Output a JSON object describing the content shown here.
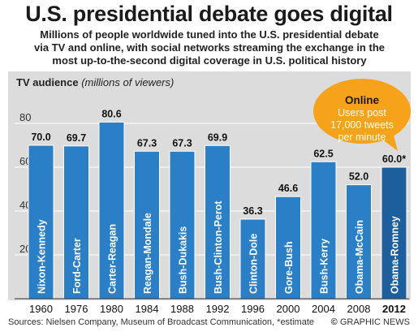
{
  "title": "U.S. presidential debate goes digital",
  "subtitle_lines": [
    "Millions of people worldwide tuned into the U.S. presidential debate",
    "via TV and online, with social networks streaming the exchange in the",
    "most up-to-the-second digital coverage in U.S. political history"
  ],
  "chart_data": {
    "type": "bar",
    "ylabel_bold": "TV audience",
    "ylabel_italic": "(millions of viewers)",
    "ylim": [
      0,
      90
    ],
    "yticks": [
      "20",
      "40",
      "60",
      "80"
    ],
    "grid": true,
    "categories": [
      "1960",
      "1976",
      "1980",
      "1984",
      "1988",
      "1992",
      "1996",
      "2000",
      "2004",
      "2008",
      "2012"
    ],
    "matchups": [
      "Nixon-Kennedy",
      "Ford-Carter",
      "Carter-Reagan",
      "Reagan-Mondale",
      "Bush-Dukakis",
      "Bush-Clinton-Perot",
      "Clinton-Dole",
      "Gore-Bush",
      "Bush-Kerry",
      "Obama-McCain",
      "Obama-Romney"
    ],
    "values": [
      70.0,
      69.7,
      80.6,
      67.3,
      67.3,
      69.9,
      36.3,
      46.6,
      62.5,
      52.0,
      60.0
    ],
    "value_labels": [
      "70.0",
      "69.7",
      "80.6",
      "67.3",
      "67.3",
      "69.9",
      "36.3",
      "46.6",
      "62.5",
      "52.0",
      "60.0*"
    ],
    "bar_color": "#2b7fc6",
    "highlight_color": "#1c5f9c",
    "highlight_index": 10,
    "callout": {
      "heading": "Online",
      "lines": [
        "Users post",
        "17,000 tweets",
        "per minute"
      ],
      "color": "#f7a21b"
    }
  },
  "footer": {
    "sources": "Sources: Nielsen Company, Museum of Broadcast Communication, *estimate",
    "credit_mark": "©",
    "credit": "GRAPHIC NEWS"
  }
}
